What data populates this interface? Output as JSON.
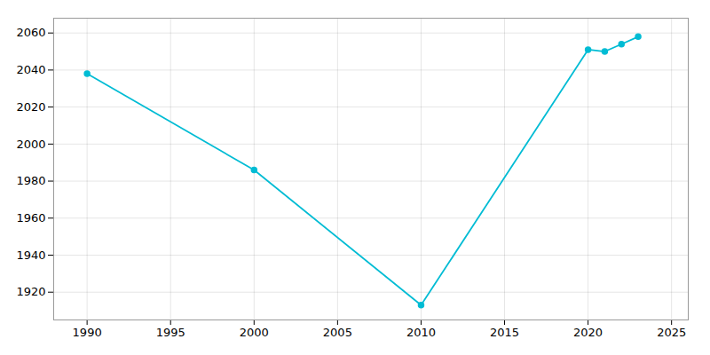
{
  "chart_data": {
    "type": "line",
    "x": [
      1990,
      2000,
      2010,
      2020,
      2021,
      2022,
      2023
    ],
    "values": [
      2038,
      1986,
      1913,
      2051,
      2050,
      2054,
      2058
    ],
    "color": "#00BCD4",
    "marker": "circle",
    "xlim": [
      1988,
      2026
    ],
    "ylim": [
      1905,
      2068
    ],
    "xticks": [
      1990,
      1995,
      2000,
      2005,
      2010,
      2015,
      2020,
      2025
    ],
    "yticks": [
      1920,
      1940,
      1960,
      1980,
      2000,
      2020,
      2040,
      2060
    ],
    "grid": true
  }
}
